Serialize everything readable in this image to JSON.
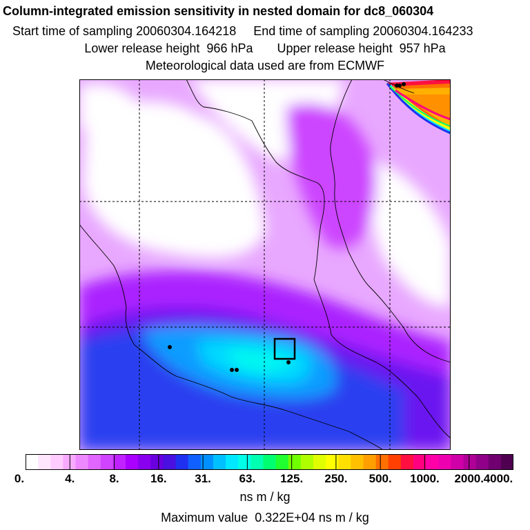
{
  "header": {
    "title": "Column-integrated emission sensitivity in nested domain for dc8_060304",
    "line1": "Start time of sampling 20060304.164218     End time of sampling 20060304.164233",
    "line2": "Lower release height  966 hPa       Upper release height  957 hPa",
    "line3": "Meteorological data used are from ECMWF"
  },
  "legend": {
    "tick_labels": [
      "0.",
      "4.",
      "8.",
      "16.",
      "31.",
      "63.",
      "125.",
      "250.",
      "500.",
      "1000.",
      "2000.",
      "4000."
    ],
    "units": "ns m / kg",
    "colors": [
      "#ffffff",
      "#ffe6ff",
      "#ffccff",
      "#f7aaff",
      "#ee88ff",
      "#e066ff",
      "#d044ff",
      "#c022ff",
      "#aa00ff",
      "#8800ee",
      "#6a00e0",
      "#4a10e0",
      "#2030f0",
      "#1060ff",
      "#0090ff",
      "#00c0ff",
      "#00e8ff",
      "#00ffe8",
      "#00ffb0",
      "#00ff70",
      "#20ff30",
      "#70ff00",
      "#b0ff00",
      "#e0ff00",
      "#ffff00",
      "#ffe000",
      "#ffc000",
      "#ffa000",
      "#ff7000",
      "#ff4000",
      "#ff1040",
      "#ff0080",
      "#ff00a8",
      "#ee00b0",
      "#d000a8",
      "#b00098",
      "#900088",
      "#700070",
      "#500050"
    ]
  },
  "footer": {
    "maximum": "Maximum value  0.322E+04 ns m / kg"
  }
}
